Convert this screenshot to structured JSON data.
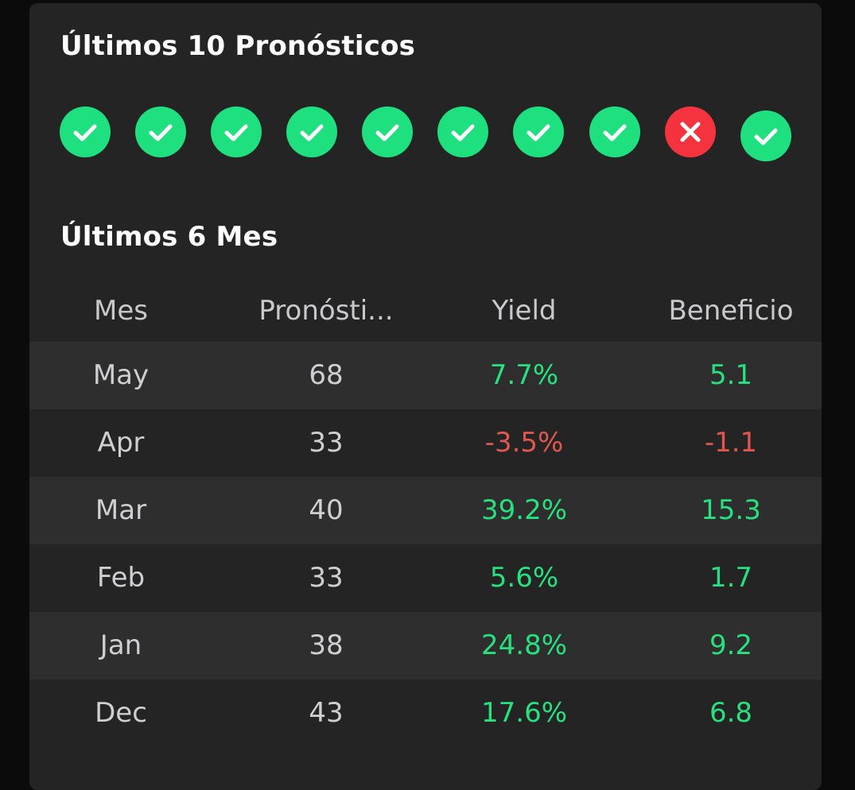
{
  "recent": {
    "title": "Últimos 10 Pronósticos",
    "results": [
      {
        "outcome": "win",
        "icon": "check-icon"
      },
      {
        "outcome": "win",
        "icon": "check-icon"
      },
      {
        "outcome": "win",
        "icon": "check-icon"
      },
      {
        "outcome": "win",
        "icon": "check-icon"
      },
      {
        "outcome": "win",
        "icon": "check-icon"
      },
      {
        "outcome": "win",
        "icon": "check-icon"
      },
      {
        "outcome": "win",
        "icon": "check-icon"
      },
      {
        "outcome": "win",
        "icon": "check-icon"
      },
      {
        "outcome": "loss",
        "icon": "cross-icon"
      },
      {
        "outcome": "win",
        "icon": "check-icon"
      }
    ]
  },
  "months": {
    "title": "Últimos 6 Mes",
    "columns": [
      "Mes",
      "Pronósti...",
      "Yield",
      "Beneficio"
    ],
    "rows": [
      {
        "month": "May",
        "count": "68",
        "yield": "7.7%",
        "profit": "5.1",
        "trend": "pos"
      },
      {
        "month": "Apr",
        "count": "33",
        "yield": "-3.5%",
        "profit": "-1.1",
        "trend": "neg"
      },
      {
        "month": "Mar",
        "count": "40",
        "yield": "39.2%",
        "profit": "15.3",
        "trend": "pos"
      },
      {
        "month": "Feb",
        "count": "33",
        "yield": "5.6%",
        "profit": "1.7",
        "trend": "pos"
      },
      {
        "month": "Jan",
        "count": "38",
        "yield": "24.8%",
        "profit": "9.2",
        "trend": "pos"
      },
      {
        "month": "Dec",
        "count": "43",
        "yield": "17.6%",
        "profit": "6.8",
        "trend": "pos"
      }
    ]
  },
  "colors": {
    "win": "#1ee07e",
    "loss": "#f5333f",
    "positive_text": "#27e07e",
    "negative_text": "#e0574f",
    "card_bg": "#242425",
    "row_shade": "#2e2e2f"
  }
}
